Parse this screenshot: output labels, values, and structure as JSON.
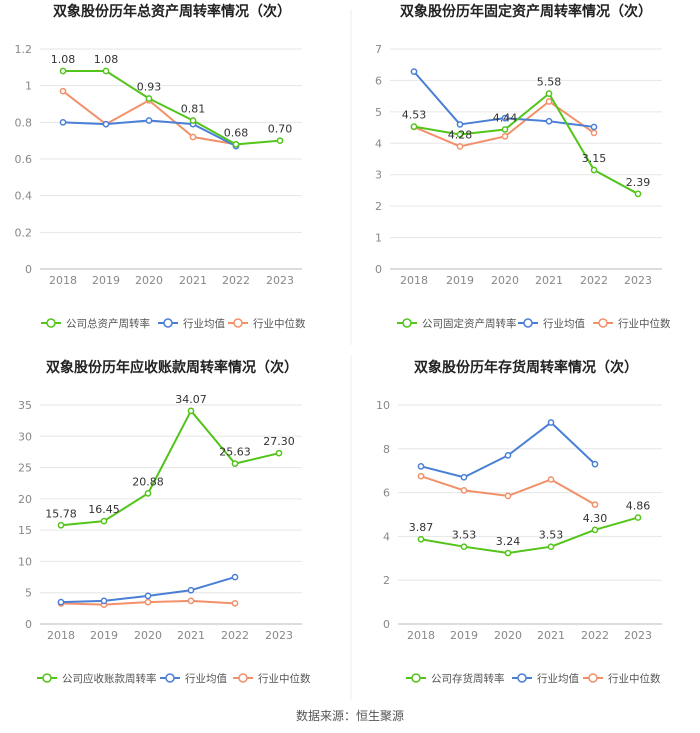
{
  "colors": {
    "company": "#52c41a",
    "industry_avg": "#4a7fd6",
    "industry_median": "#f2906a",
    "grid": "#e6e6e6",
    "axis_text": "#888888",
    "title_text": "#222222",
    "label_text": "#333333"
  },
  "source": "数据来源：恒生聚源",
  "chart_data": [
    {
      "type": "line",
      "title": "双象股份历年总资产周转率情况（次）",
      "categories": [
        "2018",
        "2019",
        "2020",
        "2021",
        "2022",
        "2023"
      ],
      "y_ticks": [
        "0",
        "0.2",
        "0.4",
        "0.6",
        "0.8",
        "1",
        "1.2"
      ],
      "ylim": [
        0,
        1.2
      ],
      "series": [
        {
          "name": "公司总资产周转率",
          "key": "company",
          "values": [
            1.08,
            1.08,
            0.93,
            0.81,
            0.68,
            0.7
          ],
          "labels": [
            "1.08",
            "1.08",
            "0.93",
            "0.81",
            "0.68",
            "0.70"
          ]
        },
        {
          "name": "行业均值",
          "key": "industry_avg",
          "values": [
            0.8,
            0.79,
            0.81,
            0.79,
            0.67,
            null
          ]
        },
        {
          "name": "行业中位数",
          "key": "industry_median",
          "values": [
            0.97,
            0.79,
            0.92,
            0.72,
            0.68,
            null
          ]
        }
      ]
    },
    {
      "type": "line",
      "title": "双象股份历年固定资产周转率情况（次）",
      "categories": [
        "2018",
        "2019",
        "2020",
        "2021",
        "2022",
        "2023"
      ],
      "y_ticks": [
        "0",
        "1",
        "2",
        "3",
        "4",
        "5",
        "6",
        "7"
      ],
      "ylim": [
        0,
        7
      ],
      "series": [
        {
          "name": "公司固定资产周转率",
          "key": "company",
          "values": [
            4.53,
            4.28,
            4.44,
            5.58,
            3.15,
            2.39
          ],
          "labels": [
            "4.53",
            "4.28",
            "4.44",
            "5.58",
            "3.15",
            "2.39"
          ]
        },
        {
          "name": "行业均值",
          "key": "industry_avg",
          "values": [
            6.28,
            4.6,
            4.8,
            4.7,
            4.52,
            null
          ]
        },
        {
          "name": "行业中位数",
          "key": "industry_median",
          "values": [
            4.52,
            3.9,
            4.22,
            5.33,
            4.33,
            null
          ]
        }
      ]
    },
    {
      "type": "line",
      "title": "双象股份历年应收账款周转率情况（次）",
      "categories": [
        "2018",
        "2019",
        "2020",
        "2021",
        "2022",
        "2023"
      ],
      "y_ticks": [
        "0",
        "5",
        "10",
        "15",
        "20",
        "25",
        "30",
        "35"
      ],
      "ylim": [
        0,
        35
      ],
      "series": [
        {
          "name": "公司应收账款周转率",
          "key": "company",
          "values": [
            15.78,
            16.45,
            20.88,
            34.07,
            25.63,
            27.3
          ],
          "labels": [
            "15.78",
            "16.45",
            "20.88",
            "34.07",
            "25.63",
            "27.30"
          ]
        },
        {
          "name": "行业均值",
          "key": "industry_avg",
          "values": [
            3.5,
            3.7,
            4.5,
            5.4,
            7.5,
            null
          ]
        },
        {
          "name": "行业中位数",
          "key": "industry_median",
          "values": [
            3.3,
            3.1,
            3.5,
            3.7,
            3.3,
            null
          ]
        }
      ]
    },
    {
      "type": "line",
      "title": "双象股份历年存货周转率情况（次）",
      "categories": [
        "2018",
        "2019",
        "2020",
        "2021",
        "2022",
        "2023"
      ],
      "y_ticks": [
        "0",
        "2",
        "4",
        "6",
        "8",
        "10"
      ],
      "ylim": [
        0,
        10
      ],
      "series": [
        {
          "name": "公司存货周转率",
          "key": "company",
          "values": [
            3.87,
            3.53,
            3.24,
            3.53,
            4.3,
            4.86
          ],
          "labels": [
            "3.87",
            "3.53",
            "3.24",
            "3.53",
            "4.30",
            "4.86"
          ]
        },
        {
          "name": "行业均值",
          "key": "industry_avg",
          "values": [
            7.2,
            6.7,
            7.7,
            9.2,
            7.3,
            null
          ]
        },
        {
          "name": "行业中位数",
          "key": "industry_median",
          "values": [
            6.75,
            6.1,
            5.85,
            6.6,
            5.45,
            null
          ]
        }
      ]
    }
  ]
}
